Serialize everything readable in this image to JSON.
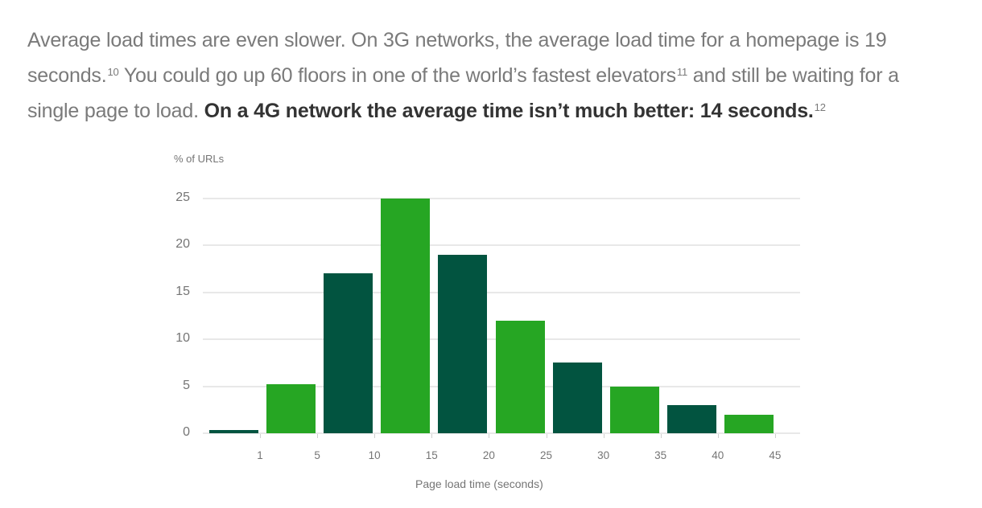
{
  "paragraph": {
    "line1": "Average load times are even slower. On 3G networks, the average load time for a homepage is 19",
    "line2a": "seconds.",
    "sup1": "10",
    "line2b": " You could go up 60 floors in one of the world’s fastest elevators",
    "sup2": "11",
    "line2c": " and still be waiting for a",
    "line3a": "single page to load. ",
    "bold": "On a 4G network the average time isn’t much better: 14 seconds.",
    "sup3": "12"
  },
  "chart_data": {
    "type": "bar",
    "title": "",
    "xlabel": "Page load time (seconds)",
    "ylabel": "% of URLs",
    "ylim": [
      0,
      25
    ],
    "yticks": [
      "0",
      "5",
      "10",
      "15",
      "20",
      "25"
    ],
    "xticks": [
      "1",
      "5",
      "10",
      "15",
      "20",
      "25",
      "30",
      "35",
      "40",
      "45"
    ],
    "categories": [
      "0-1",
      "1-5",
      "5-10",
      "10-15",
      "15-20",
      "20-25",
      "25-30",
      "30-35",
      "35-40",
      "40-45"
    ],
    "values": [
      0.3,
      5.2,
      17,
      25,
      19,
      12,
      7.5,
      5,
      3,
      2
    ],
    "colors": [
      "#025440",
      "#26a623",
      "#025440",
      "#26a623",
      "#025440",
      "#26a623",
      "#025440",
      "#26a623",
      "#025440",
      "#26a623"
    ],
    "grid": true,
    "legend": "none"
  }
}
